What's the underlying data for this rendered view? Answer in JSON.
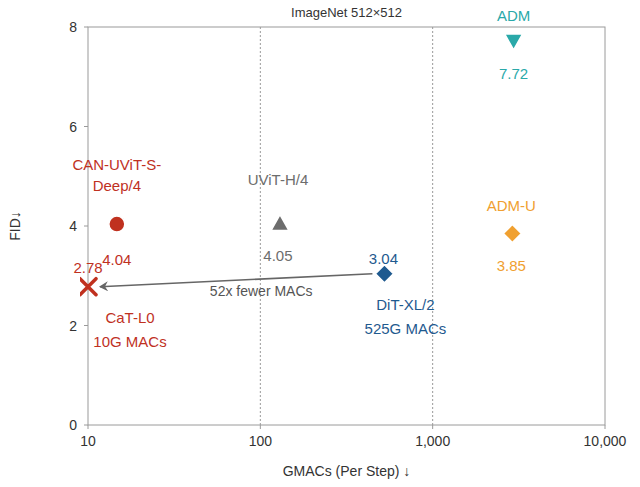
{
  "chart_data": {
    "type": "scatter",
    "title": "ImageNet 512×512",
    "x_label": "GMACs (Per Step) ↓",
    "y_label": "FID↓",
    "log": "x",
    "grid": true,
    "data_labels": true,
    "xlim": [
      10,
      10000
    ],
    "xticks": [
      10,
      100,
      {
        "value": 1000,
        "label": "1,000"
      },
      {
        "value": 10000,
        "label": "10,000"
      }
    ],
    "ylim": [
      0,
      8
    ],
    "yticks": [
      0,
      2,
      4,
      6,
      8
    ],
    "series": [
      {
        "name": "CAN-UViT-S-Deep/4",
        "x": [
          14.7
        ],
        "values": [
          4.04
        ],
        "color": "#c0311f",
        "marker": "circle"
      },
      {
        "name": "UViT-H/4",
        "x": [
          130
        ],
        "values": [
          4.05
        ],
        "color": "#6d6d6d",
        "marker": "triangle"
      },
      {
        "name": "DiT-XL/2",
        "x": [
          525
        ],
        "values": [
          3.04
        ],
        "color": "#1f5a8f",
        "marker": "diamond",
        "annotation": "525G MACs"
      },
      {
        "name": "CaT-L0",
        "x": [
          10
        ],
        "values": [
          2.78
        ],
        "color": "#c0311f",
        "marker": "x",
        "annotation": "10G MACs"
      },
      {
        "name": "ADM",
        "x": [
          2950
        ],
        "values": [
          7.72
        ],
        "color": "#2aa9a9",
        "marker": "triangle-down"
      },
      {
        "name": "ADM-U",
        "x": [
          2900
        ],
        "values": [
          3.85
        ],
        "color": "#f0a030",
        "marker": "diamond"
      }
    ],
    "arrow": {
      "label": "52x fewer MACs",
      "from": "DiT-XL/2",
      "to": "CaT-L0"
    }
  }
}
